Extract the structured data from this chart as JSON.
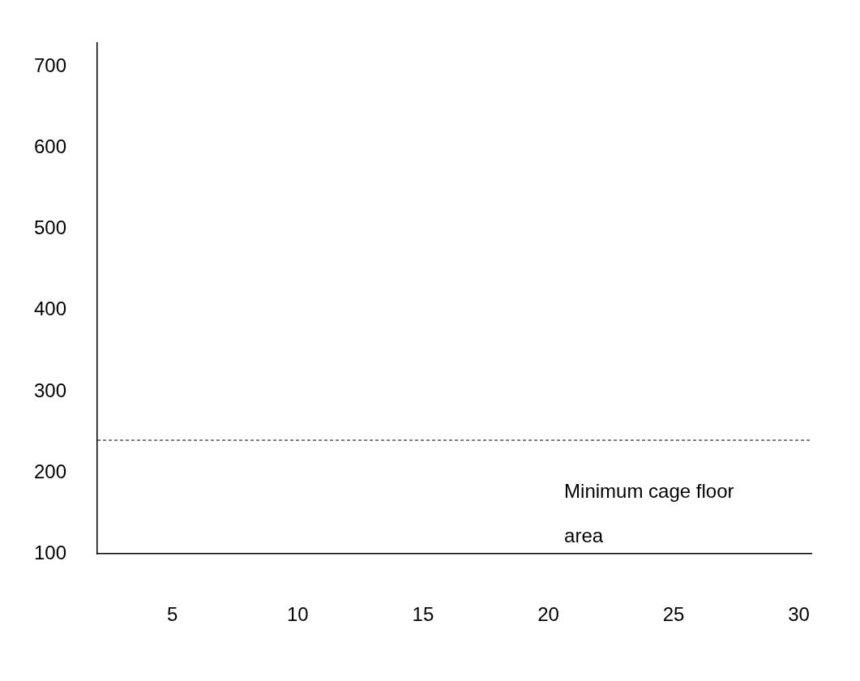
{
  "chart_data": {
    "type": "line",
    "xlim": [
      2,
      30.5
    ],
    "xticks": [
      5,
      10,
      15,
      20,
      25,
      30
    ],
    "ylim": [
      100,
      730
    ],
    "yticks": [
      100,
      200,
      300,
      400,
      500,
      600,
      700
    ],
    "grid": false,
    "ref_lines": [
      {
        "axis": "y",
        "value": 240,
        "label": "Minimum cage floor area",
        "color": "#000000",
        "line_style": "dashed"
      }
    ]
  }
}
